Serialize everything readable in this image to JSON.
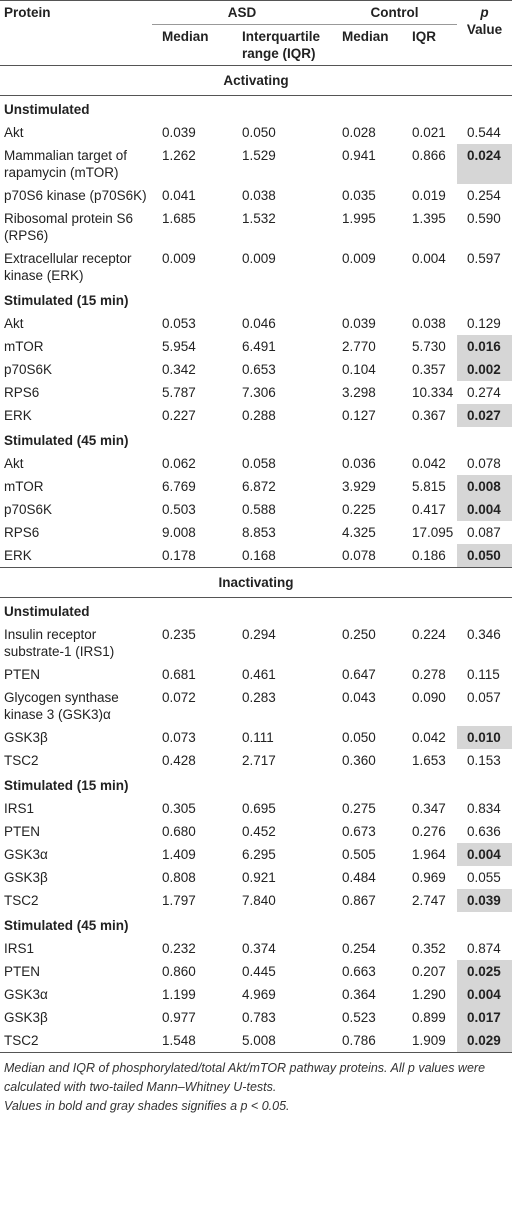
{
  "header": {
    "protein": "Protein",
    "asd": "ASD",
    "control": "Control",
    "p_value": {
      "p": "p",
      "value": "Value"
    },
    "sub": [
      "Median",
      "Interquartile range (IQR)",
      "Median",
      "IQR"
    ]
  },
  "sections": [
    {
      "title": "Activating",
      "groups": [
        {
          "title": "Unstimulated",
          "rows": [
            {
              "protein": "Akt",
              "values": [
                "0.039",
                "0.050",
                "0.028",
                "0.021",
                "0.544"
              ],
              "significant": false
            },
            {
              "protein": "Mammalian target of rapamycin (mTOR)",
              "values": [
                "1.262",
                "1.529",
                "0.941",
                "0.866",
                "0.024"
              ],
              "significant": true
            },
            {
              "protein": "p70S6 kinase (p70S6K)",
              "values": [
                "0.041",
                "0.038",
                "0.035",
                "0.019",
                "0.254"
              ],
              "significant": false
            },
            {
              "protein": "Ribosomal protein S6 (RPS6)",
              "values": [
                "1.685",
                "1.532",
                "1.995",
                "1.395",
                "0.590"
              ],
              "significant": false
            },
            {
              "protein": "Extracellular receptor kinase (ERK)",
              "values": [
                "0.009",
                "0.009",
                "0.009",
                "0.004",
                "0.597"
              ],
              "significant": false
            }
          ]
        },
        {
          "title": "Stimulated (15 min)",
          "rows": [
            {
              "protein": "Akt",
              "values": [
                "0.053",
                "0.046",
                "0.039",
                "0.038",
                "0.129"
              ],
              "significant": false
            },
            {
              "protein": "mTOR",
              "values": [
                "5.954",
                "6.491",
                "2.770",
                "5.730",
                "0.016"
              ],
              "significant": true
            },
            {
              "protein": "p70S6K",
              "values": [
                "0.342",
                "0.653",
                "0.104",
                "0.357",
                "0.002"
              ],
              "significant": true
            },
            {
              "protein": "RPS6",
              "values": [
                "5.787",
                "7.306",
                "3.298",
                "10.334",
                "0.274"
              ],
              "significant": false
            },
            {
              "protein": "ERK",
              "values": [
                "0.227",
                "0.288",
                "0.127",
                "0.367",
                "0.027"
              ],
              "significant": true
            }
          ]
        },
        {
          "title": "Stimulated (45 min)",
          "rows": [
            {
              "protein": "Akt",
              "values": [
                "0.062",
                "0.058",
                "0.036",
                "0.042",
                "0.078"
              ],
              "significant": false
            },
            {
              "protein": "mTOR",
              "values": [
                "6.769",
                "6.872",
                "3.929",
                "5.815",
                "0.008"
              ],
              "significant": true
            },
            {
              "protein": "p70S6K",
              "values": [
                "0.503",
                "0.588",
                "0.225",
                "0.417",
                "0.004"
              ],
              "significant": true
            },
            {
              "protein": "RPS6",
              "values": [
                "9.008",
                "8.853",
                "4.325",
                "17.095",
                "0.087"
              ],
              "significant": false
            },
            {
              "protein": "ERK",
              "values": [
                "0.178",
                "0.168",
                "0.078",
                "0.186",
                "0.050"
              ],
              "significant": true
            }
          ]
        }
      ]
    },
    {
      "title": "Inactivating",
      "groups": [
        {
          "title": "Unstimulated",
          "rows": [
            {
              "protein": "Insulin receptor substrate-1 (IRS1)",
              "values": [
                "0.235",
                "0.294",
                "0.250",
                "0.224",
                "0.346"
              ],
              "significant": false
            },
            {
              "protein": "PTEN",
              "values": [
                "0.681",
                "0.461",
                "0.647",
                "0.278",
                "0.115"
              ],
              "significant": false
            },
            {
              "protein": "Glycogen synthase kinase 3 (GSK3)α",
              "values": [
                "0.072",
                "0.283",
                "0.043",
                "0.090",
                "0.057"
              ],
              "significant": false
            },
            {
              "protein": "GSK3β",
              "values": [
                "0.073",
                "0.111",
                "0.050",
                "0.042",
                "0.010"
              ],
              "significant": true
            },
            {
              "protein": "TSC2",
              "values": [
                "0.428",
                "2.717",
                "0.360",
                "1.653",
                "0.153"
              ],
              "significant": false
            }
          ]
        },
        {
          "title": "Stimulated (15 min)",
          "rows": [
            {
              "protein": "IRS1",
              "values": [
                "0.305",
                "0.695",
                "0.275",
                "0.347",
                "0.834"
              ],
              "significant": false
            },
            {
              "protein": "PTEN",
              "values": [
                "0.680",
                "0.452",
                "0.673",
                "0.276",
                "0.636"
              ],
              "significant": false
            },
            {
              "protein": "GSK3α",
              "values": [
                "1.409",
                "6.295",
                "0.505",
                "1.964",
                "0.004"
              ],
              "significant": true
            },
            {
              "protein": "GSK3β",
              "values": [
                "0.808",
                "0.921",
                "0.484",
                "0.969",
                "0.055"
              ],
              "significant": false
            },
            {
              "protein": "TSC2",
              "values": [
                "1.797",
                "7.840",
                "0.867",
                "2.747",
                "0.039"
              ],
              "significant": true
            }
          ]
        },
        {
          "title": "Stimulated (45 min)",
          "rows": [
            {
              "protein": "IRS1",
              "values": [
                "0.232",
                "0.374",
                "0.254",
                "0.352",
                "0.874"
              ],
              "significant": false
            },
            {
              "protein": "PTEN",
              "values": [
                "0.860",
                "0.445",
                "0.663",
                "0.207",
                "0.025"
              ],
              "significant": true
            },
            {
              "protein": "GSK3α",
              "values": [
                "1.199",
                "4.969",
                "0.364",
                "1.290",
                "0.004"
              ],
              "significant": true
            },
            {
              "protein": "GSK3β",
              "values": [
                "0.977",
                "0.783",
                "0.523",
                "0.899",
                "0.017"
              ],
              "significant": true
            },
            {
              "protein": "TSC2",
              "values": [
                "1.548",
                "5.008",
                "0.786",
                "1.909",
                "0.029"
              ],
              "significant": true
            }
          ]
        }
      ]
    }
  ],
  "footnotes": [
    "Median and IQR of phosphorylated/total Akt/mTOR pathway proteins. All p values were calculated with two-tailed Mann–Whitney U-tests.",
    "Values in bold and gray shades signifies a p < 0.05."
  ]
}
